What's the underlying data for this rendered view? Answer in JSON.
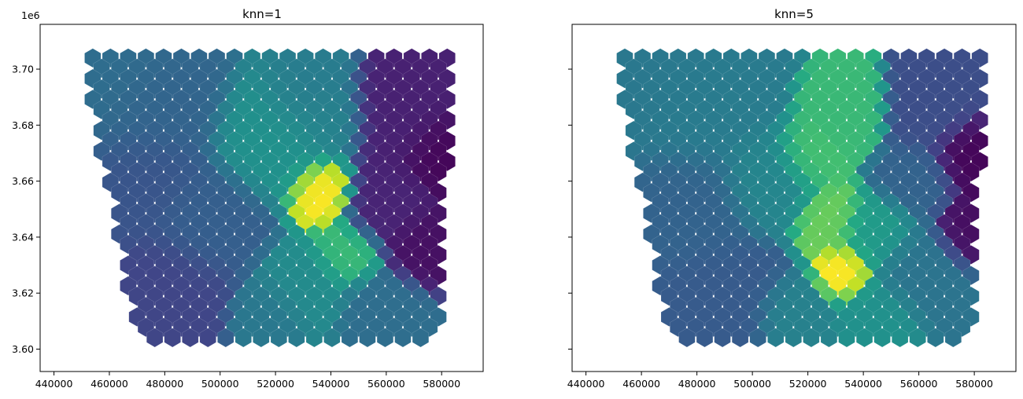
{
  "chart_data": [
    {
      "type": "choropleth-hexbin",
      "title": "knn=1",
      "colormap": "viridis",
      "xlim": [
        435000,
        595000
      ],
      "ylim": [
        3592000,
        3716000
      ],
      "x_ticks": [
        440000,
        460000,
        480000,
        500000,
        520000,
        540000,
        560000,
        580000
      ],
      "x_tick_labels": [
        "440000",
        "460000",
        "480000",
        "500000",
        "520000",
        "540000",
        "560000",
        "580000"
      ],
      "y_ticks": [
        3600000,
        3620000,
        3640000,
        3660000,
        3680000,
        3700000
      ],
      "y_tick_labels": [
        "3.60",
        "3.62",
        "3.64",
        "3.66",
        "3.68",
        "3.70"
      ],
      "y_offset_label": "1e6",
      "show_y_tick_labels": true,
      "hex_radius_m": 3400,
      "hex_grid": {
        "x0": 454000,
        "y0": 3704000,
        "dx": 6400,
        "dy": 3700,
        "rows": 28,
        "cols": 21
      },
      "footprint": {
        "top": 3710000,
        "bottom": 3597000,
        "left_top": 449000,
        "left_bottom": 472000,
        "right_top": 585000,
        "right_bottom": 578000,
        "left_indent_at": 3688000
      },
      "value_field": [
        {
          "x": 455000,
          "y": 3700000,
          "v": 0.45,
          "s": 22000
        },
        {
          "x": 478000,
          "y": 3688000,
          "v": 0.4,
          "s": 14000
        },
        {
          "x": 470000,
          "y": 3660000,
          "v": 0.33,
          "s": 14000
        },
        {
          "x": 482000,
          "y": 3622000,
          "v": 0.26,
          "s": 12000
        },
        {
          "x": 495000,
          "y": 3645000,
          "v": 0.38,
          "s": 12000
        },
        {
          "x": 520000,
          "y": 3676000,
          "v": 0.63,
          "s": 13000
        },
        {
          "x": 530000,
          "y": 3690000,
          "v": 0.52,
          "s": 10000
        },
        {
          "x": 540000,
          "y": 3680000,
          "v": 0.55,
          "s": 8000
        },
        {
          "x": 537000,
          "y": 3656000,
          "v": 1.0,
          "s": 7000
        },
        {
          "x": 545000,
          "y": 3634000,
          "v": 0.8,
          "s": 7000
        },
        {
          "x": 530000,
          "y": 3622000,
          "v": 0.6,
          "s": 9000
        },
        {
          "x": 518000,
          "y": 3612000,
          "v": 0.5,
          "s": 8000
        },
        {
          "x": 560000,
          "y": 3612000,
          "v": 0.45,
          "s": 9000
        },
        {
          "x": 565000,
          "y": 3680000,
          "v": 0.12,
          "s": 11000
        },
        {
          "x": 578000,
          "y": 3670000,
          "v": 0.02,
          "s": 8000
        },
        {
          "x": 575000,
          "y": 3636000,
          "v": 0.06,
          "s": 8000
        },
        {
          "x": 560000,
          "y": 3652000,
          "v": 0.13,
          "s": 9000
        }
      ]
    },
    {
      "type": "choropleth-hexbin",
      "title": "knn=5",
      "colormap": "viridis",
      "xlim": [
        435000,
        595000
      ],
      "ylim": [
        3592000,
        3716000
      ],
      "x_ticks": [
        440000,
        460000,
        480000,
        500000,
        520000,
        540000,
        560000,
        580000
      ],
      "x_tick_labels": [
        "440000",
        "460000",
        "480000",
        "500000",
        "520000",
        "540000",
        "560000",
        "580000"
      ],
      "y_ticks": [
        3600000,
        3620000,
        3640000,
        3660000,
        3680000,
        3700000
      ],
      "y_tick_labels": [],
      "show_y_tick_labels": false,
      "hex_radius_m": 3400,
      "hex_grid": {
        "x0": 454000,
        "y0": 3704000,
        "dx": 6400,
        "dy": 3700,
        "rows": 28,
        "cols": 21
      },
      "footprint": {
        "top": 3710000,
        "bottom": 3597000,
        "left_top": 449000,
        "left_bottom": 472000,
        "right_top": 585000,
        "right_bottom": 578000,
        "left_indent_at": 3688000
      },
      "value_field": [
        {
          "x": 458000,
          "y": 3700000,
          "v": 0.5,
          "s": 20000
        },
        {
          "x": 480000,
          "y": 3685000,
          "v": 0.52,
          "s": 14000
        },
        {
          "x": 475000,
          "y": 3650000,
          "v": 0.4,
          "s": 14000
        },
        {
          "x": 485000,
          "y": 3615000,
          "v": 0.36,
          "s": 14000
        },
        {
          "x": 505000,
          "y": 3660000,
          "v": 0.57,
          "s": 10000
        },
        {
          "x": 520000,
          "y": 3668000,
          "v": 0.82,
          "s": 7000
        },
        {
          "x": 533000,
          "y": 3684000,
          "v": 0.8,
          "s": 8000
        },
        {
          "x": 528000,
          "y": 3645000,
          "v": 0.86,
          "s": 7000
        },
        {
          "x": 534000,
          "y": 3627000,
          "v": 1.0,
          "s": 6000
        },
        {
          "x": 545000,
          "y": 3640000,
          "v": 0.68,
          "s": 8000
        },
        {
          "x": 545000,
          "y": 3612000,
          "v": 0.63,
          "s": 8000
        },
        {
          "x": 515000,
          "y": 3610000,
          "v": 0.55,
          "s": 8000
        },
        {
          "x": 560000,
          "y": 3628000,
          "v": 0.48,
          "s": 10000
        },
        {
          "x": 565000,
          "y": 3684000,
          "v": 0.3,
          "s": 9000
        },
        {
          "x": 578000,
          "y": 3668000,
          "v": 0.02,
          "s": 8000
        },
        {
          "x": 578000,
          "y": 3642000,
          "v": 0.05,
          "s": 7000
        },
        {
          "x": 560000,
          "y": 3660000,
          "v": 0.4,
          "s": 8000
        }
      ]
    }
  ]
}
